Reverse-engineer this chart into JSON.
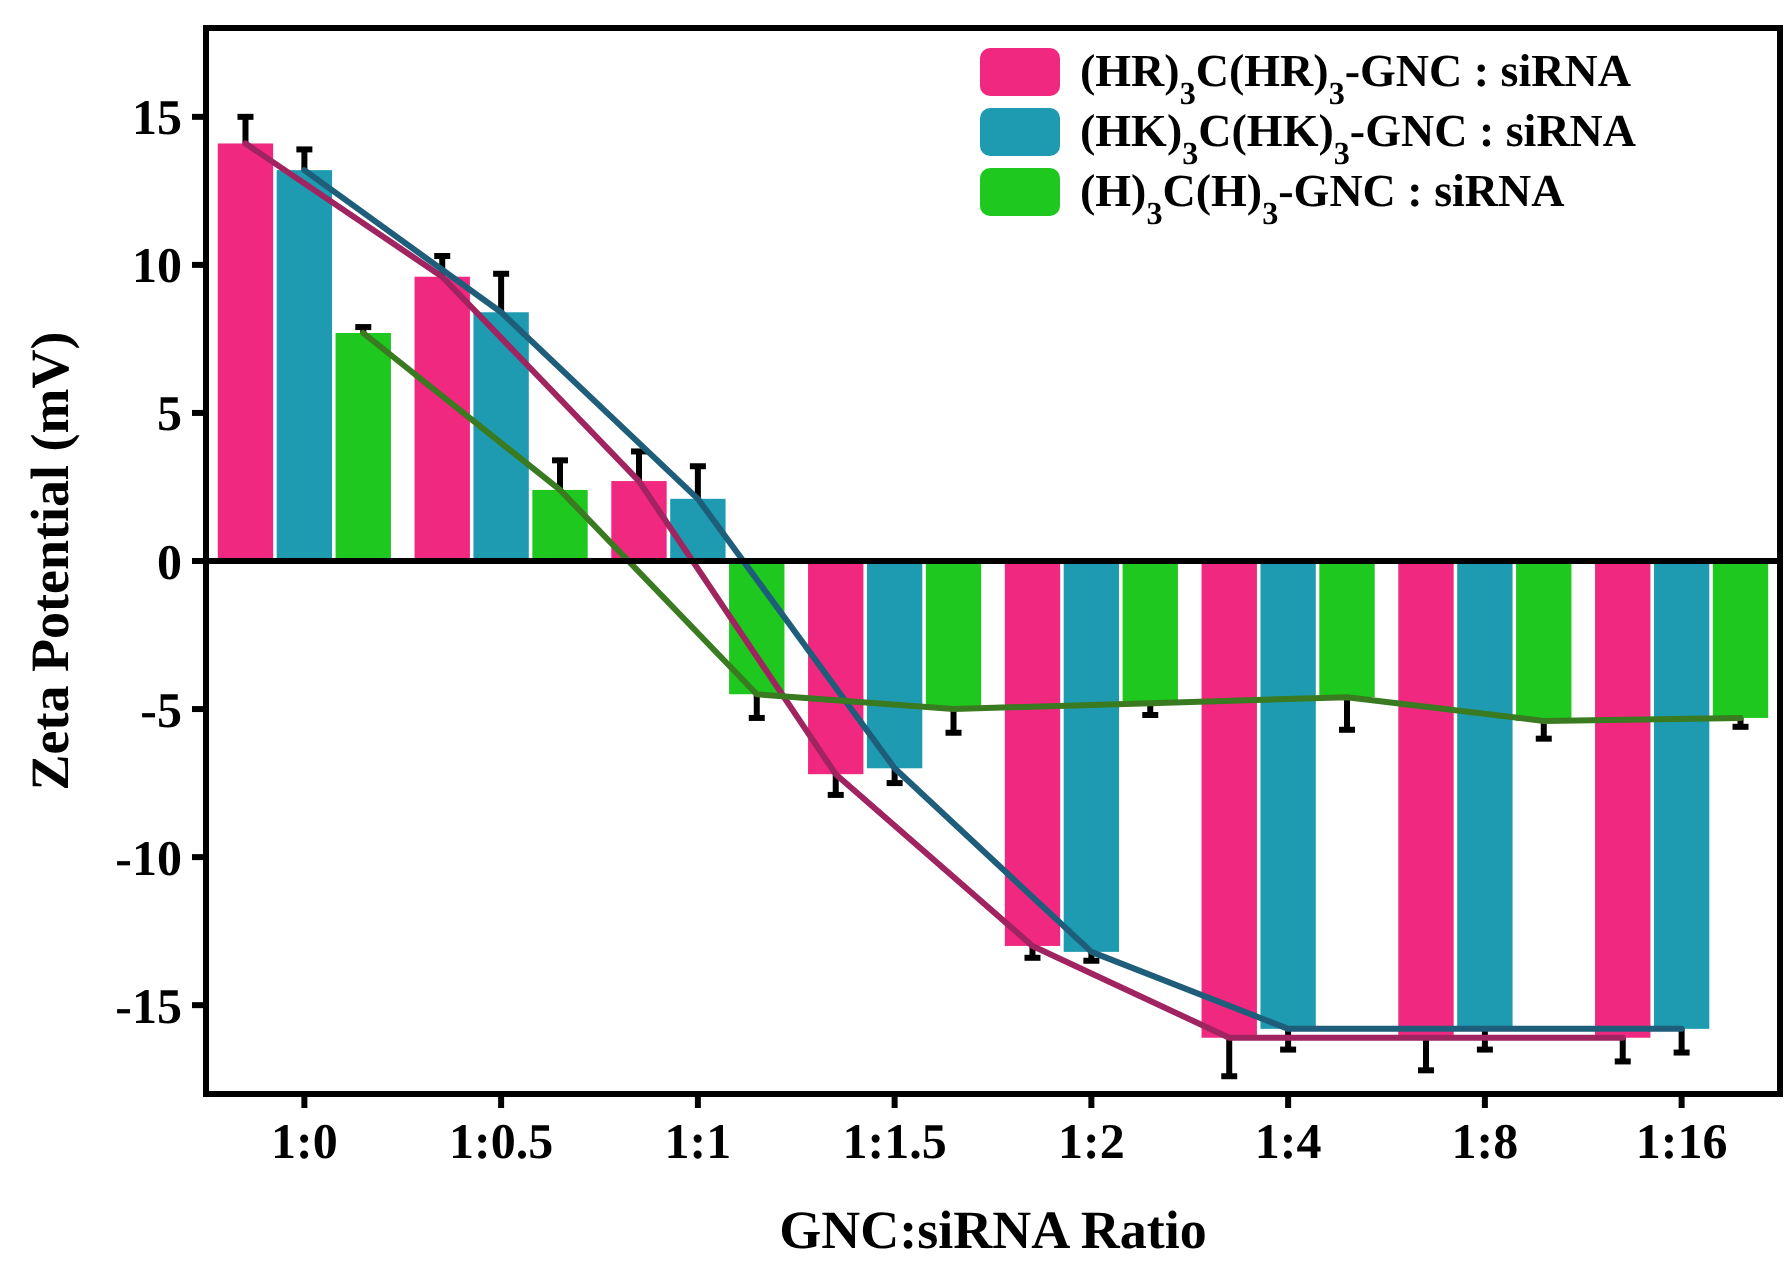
{
  "chart_data": {
    "type": "bar",
    "xlabel": "GNC:siRNA Ratio",
    "ylabel": "Zeta Potential (mV)",
    "categories": [
      "1:0",
      "1:0.5",
      "1:1",
      "1:1.5",
      "1:2",
      "1:4",
      "1:8",
      "1:16"
    ],
    "ylim": [
      -18,
      18
    ],
    "yticks": [
      -15,
      -10,
      -5,
      0,
      5,
      10,
      15
    ],
    "legend": "top right",
    "grid": false,
    "ref_lines": [
      {
        "axis": "y",
        "value": 0,
        "color": "#000000"
      }
    ],
    "series": [
      {
        "name": "(HR)$_{3}$C(HR)$_{3}$-GNC : siRNA",
        "color": "#f0287f",
        "values": [
          14.1,
          9.6,
          2.7,
          -7.2,
          -13,
          -16.1,
          -16.1,
          -16.1
        ],
        "errors": [
          0.9,
          0.7,
          1,
          0.7,
          0.4,
          1.3,
          1.1,
          0.8
        ]
      },
      {
        "name": "(HK)$_{3}$C(HK)$_{3}$-GNC : siRNA",
        "color": "#1e9bb0",
        "values": [
          13.2,
          8.4,
          2.1,
          -7,
          -13.2,
          -15.8,
          -15.8,
          -15.8
        ],
        "errors": [
          0.7,
          1.3,
          1.1,
          0.5,
          0.3,
          0.7,
          0.7,
          0.8
        ]
      },
      {
        "name": "(H)$_{3}$C(H)$_{3}$-GNC : siRNA",
        "color": "#1ec81e",
        "values": [
          7.7,
          2.4,
          -4.5,
          -5,
          -4.8,
          -4.6,
          -5.4,
          -5.3
        ],
        "errors": [
          0.2,
          1,
          0.8,
          0.8,
          0.4,
          1.1,
          0.6,
          0.3
        ]
      },
      {
        "type": "line",
        "color": "#a02460",
        "x": [
          "1:0",
          "1:0.5",
          "1:1",
          "1:1.5",
          "1:2",
          "1:4",
          "1:8",
          "1:16"
        ],
        "values": [
          14.1,
          9.6,
          2.7,
          -7.2,
          -13,
          -16.1,
          -16.1,
          -16.1
        ]
      },
      {
        "type": "line",
        "color": "#1f5e7a",
        "x": [
          "1:0",
          "1:0.5",
          "1:1",
          "1:1.5",
          "1:2",
          "1:4",
          "1:8",
          "1:16"
        ],
        "values": [
          13.2,
          8.4,
          2.1,
          -7,
          -13.2,
          -15.8,
          -15.8,
          -15.8
        ]
      },
      {
        "type": "line",
        "color": "#3a7a20",
        "x": [
          "1:0",
          "1:0.5",
          "1:1",
          "1:1.5",
          "1:2",
          "1:4",
          "1:8",
          "1:16"
        ],
        "values": [
          7.7,
          2.4,
          -4.5,
          -5,
          -4.8,
          -4.6,
          -5.4,
          -5.3
        ]
      }
    ]
  }
}
